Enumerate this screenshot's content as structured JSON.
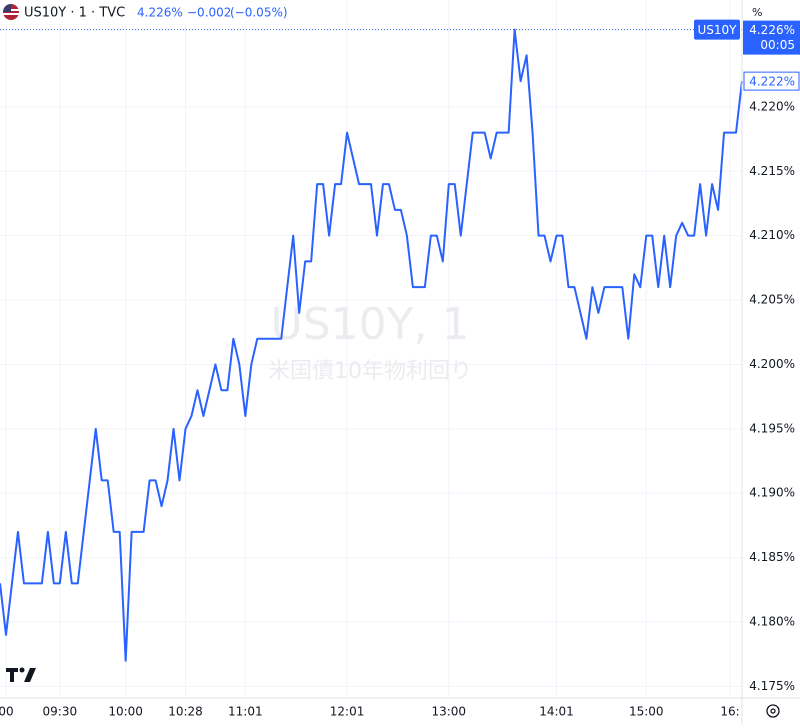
{
  "header": {
    "symbol": "US10Y · 1 · TVC",
    "price": "4.226%",
    "change": "−0.002",
    "change_pct": "(−0.05%)"
  },
  "chart_data": {
    "type": "line",
    "watermark": "US10Y, 1",
    "watermark_sub": "米国債10年物利回り",
    "axis_unit": "%",
    "categories": [
      null,
      "00",
      null,
      null,
      null,
      null,
      null,
      null,
      null,
      null,
      "09:30",
      null,
      null,
      null,
      null,
      null,
      null,
      null,
      null,
      null,
      null,
      "10:00",
      null,
      null,
      null,
      null,
      null,
      null,
      null,
      null,
      null,
      "10:28",
      null,
      null,
      null,
      null,
      null,
      null,
      null,
      null,
      null,
      "11:01",
      null,
      null,
      null,
      null,
      null,
      null,
      null,
      null,
      null,
      null,
      null,
      null,
      null,
      null,
      null,
      null,
      "12:01",
      null,
      null,
      null,
      null,
      null,
      null,
      null,
      null,
      null,
      null,
      null,
      null,
      null,
      null,
      null,
      null,
      "13:00",
      null,
      null,
      null,
      null,
      null,
      null,
      null,
      null,
      null,
      null,
      null,
      null,
      null,
      null,
      null,
      null,
      null,
      "14:01",
      null,
      null,
      null,
      null,
      null,
      null,
      null,
      null,
      null,
      null,
      null,
      null,
      null,
      null,
      "15:00",
      null,
      null,
      null,
      null,
      null,
      null,
      null,
      null,
      null,
      null,
      null,
      null,
      null,
      "16:",
      null,
      null
    ],
    "series": [
      {
        "name": "US10Y",
        "color": "#2962ff",
        "values": [
          4.183,
          4.179,
          4.183,
          4.187,
          4.183,
          4.183,
          4.183,
          4.183,
          4.187,
          4.183,
          4.183,
          4.187,
          4.183,
          4.183,
          4.187,
          4.191,
          4.195,
          4.191,
          4.191,
          4.187,
          4.187,
          4.177,
          4.187,
          4.187,
          4.187,
          4.191,
          4.191,
          4.189,
          4.191,
          4.195,
          4.191,
          4.195,
          4.196,
          4.198,
          4.196,
          4.198,
          4.2,
          4.198,
          4.198,
          4.202,
          4.2,
          4.196,
          4.2,
          4.202,
          4.202,
          4.202,
          4.202,
          4.202,
          4.206,
          4.21,
          4.204,
          4.208,
          4.208,
          4.214,
          4.214,
          4.21,
          4.214,
          4.214,
          4.218,
          4.216,
          4.214,
          4.214,
          4.214,
          4.21,
          4.214,
          4.214,
          4.212,
          4.212,
          4.21,
          4.206,
          4.206,
          4.206,
          4.21,
          4.21,
          4.208,
          4.214,
          4.214,
          4.21,
          4.214,
          4.218,
          4.218,
          4.218,
          4.216,
          4.218,
          4.218,
          4.218,
          4.226,
          4.222,
          4.224,
          4.218,
          4.21,
          4.21,
          4.208,
          4.21,
          4.21,
          4.206,
          4.206,
          4.204,
          4.202,
          4.206,
          4.204,
          4.206,
          4.206,
          4.206,
          4.206,
          4.202,
          4.207,
          4.206,
          4.21,
          4.21,
          4.206,
          4.21,
          4.206,
          4.21,
          4.211,
          4.21,
          4.21,
          4.214,
          4.21,
          4.214,
          4.212,
          4.218,
          4.218,
          4.218,
          4.222
        ]
      }
    ],
    "ylim": [
      4.1741,
      4.2283
    ],
    "yticks": [
      {
        "value": 4.175,
        "label": "4.175%"
      },
      {
        "value": 4.18,
        "label": "4.180%"
      },
      {
        "value": 4.185,
        "label": "4.185%"
      },
      {
        "value": 4.19,
        "label": "4.190%"
      },
      {
        "value": 4.195,
        "label": "4.195%"
      },
      {
        "value": 4.2,
        "label": "4.200%"
      },
      {
        "value": 4.205,
        "label": "4.205%"
      },
      {
        "value": 4.21,
        "label": "4.210%"
      },
      {
        "value": 4.215,
        "label": "4.215%"
      },
      {
        "value": 4.22,
        "label": "4.220%"
      }
    ],
    "grid": true,
    "price_line": {
      "value": 4.226,
      "label": "4.226%",
      "countdown": "00:05"
    },
    "current_marker": {
      "value": 4.222,
      "label": "4.222%"
    }
  }
}
